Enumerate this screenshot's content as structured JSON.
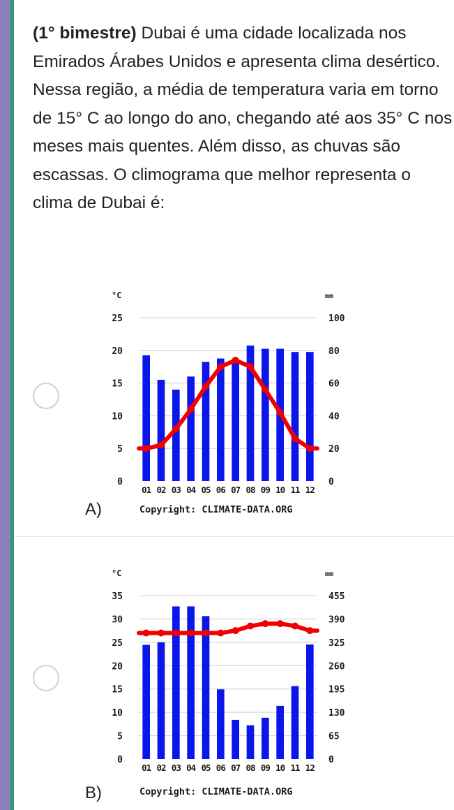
{
  "question": {
    "prefix": "(1° bimestre)",
    "body": " Dubai é uma cidade localizada nos Emirados Árabes Unidos e apresenta clima desértico. Nessa região, a média de temperatura varia em torno de 15° C ao longo do ano, chegando até aos 35° C nos meses mais quentes. Além disso, as chuvas são escassas. O climograma que melhor representa o clima de Dubai é:"
  },
  "options": [
    {
      "letter": "A)",
      "copyright": "Copyright: CLIMATE-DATA.ORG",
      "chart_data": {
        "type": "bar",
        "categories": [
          "01",
          "02",
          "03",
          "04",
          "05",
          "06",
          "07",
          "08",
          "09",
          "10",
          "11",
          "12"
        ],
        "left_axis": {
          "unit": "°C",
          "ticks": [
            0,
            5,
            10,
            15,
            20,
            25
          ],
          "ylim": [
            0,
            25
          ]
        },
        "right_axis": {
          "unit": "mm",
          "ticks": [
            0,
            20,
            40,
            60,
            80,
            100
          ],
          "ylim": [
            0,
            100
          ]
        },
        "series": [
          {
            "kind": "bar",
            "axis": "right",
            "values": [
              77,
              62,
              56,
              64,
              73,
              75,
              73,
              83,
              81,
              81,
              79,
              79
            ]
          },
          {
            "kind": "line",
            "axis": "left",
            "values": [
              5,
              5.5,
              8,
              11,
              14.5,
              17.5,
              18.5,
              17.5,
              14,
              10.5,
              6.5,
              5
            ]
          }
        ],
        "colors": {
          "bar": "#0b16ea",
          "line": "#f00000"
        },
        "grid": true
      }
    },
    {
      "letter": "B)",
      "copyright": "Copyright: CLIMATE-DATA.ORG",
      "chart_data": {
        "type": "bar",
        "categories": [
          "01",
          "02",
          "03",
          "04",
          "05",
          "06",
          "07",
          "08",
          "09",
          "10",
          "11",
          "12"
        ],
        "left_axis": {
          "unit": "°C",
          "ticks": [
            0,
            5,
            10,
            15,
            20,
            25,
            30,
            35
          ],
          "ylim": [
            0,
            35
          ]
        },
        "right_axis": {
          "unit": "mm",
          "ticks": [
            0,
            65,
            130,
            195,
            260,
            325,
            390,
            455
          ],
          "ylim": [
            0,
            455
          ]
        },
        "series": [
          {
            "kind": "bar",
            "axis": "right",
            "values": [
              318,
              325,
              425,
              425,
              398,
              194,
              109,
              94,
              115,
              148,
              203,
              319
            ]
          },
          {
            "kind": "line",
            "axis": "left",
            "values": [
              27,
              27,
              27,
              27,
              27,
              27,
              27.5,
              28.5,
              29,
              29,
              28.5,
              27.5
            ]
          }
        ],
        "colors": {
          "bar": "#0b16ea",
          "line": "#f00000"
        },
        "grid": true
      }
    }
  ]
}
